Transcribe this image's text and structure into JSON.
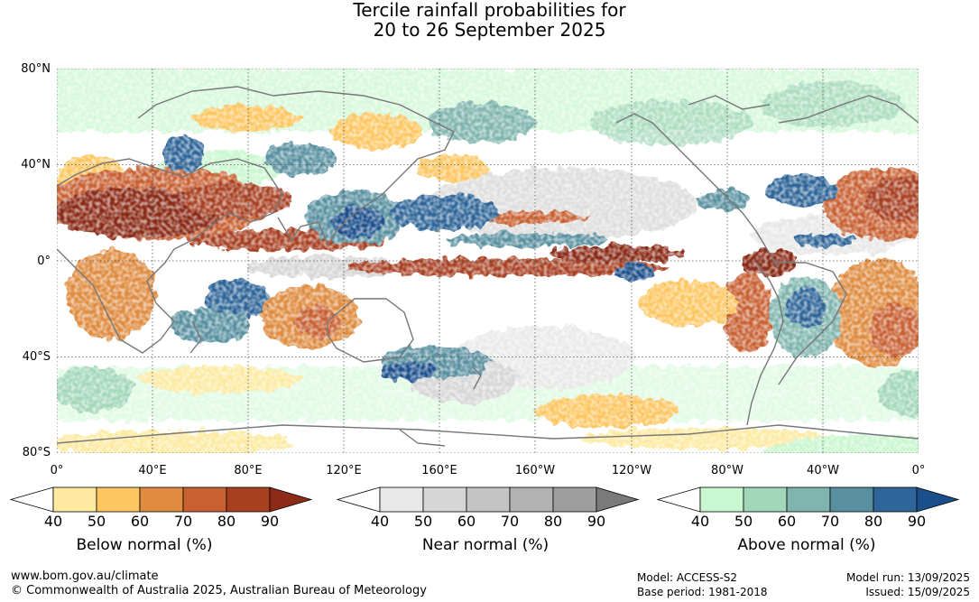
{
  "title": {
    "line1": "Tercile rainfall probabilities for",
    "line2": "20 to 26 September 2025"
  },
  "map": {
    "lat_labels": [
      "80°N",
      "40°N",
      "0°",
      "40°S",
      "80°S"
    ],
    "lon_labels": [
      "0°",
      "40°E",
      "80°E",
      "120°E",
      "160°E",
      "160°W",
      "120°W",
      "80°W",
      "40°W",
      "0°"
    ],
    "grid": true,
    "projection": "equirectangular",
    "extent": {
      "lon": [
        0,
        360
      ],
      "lat": [
        -80,
        80
      ]
    }
  },
  "legends": [
    {
      "id": "below",
      "title": "Below normal (%)",
      "ticks": [
        "40",
        "50",
        "60",
        "70",
        "80",
        "90"
      ],
      "colors": [
        "#ffffff",
        "#fdeaa0",
        "#fdc660",
        "#df8c40",
        "#c86030",
        "#a84020",
        "#8b2b18"
      ]
    },
    {
      "id": "near",
      "title": "Near normal (%)",
      "ticks": [
        "40",
        "50",
        "60",
        "70",
        "80",
        "90"
      ],
      "colors": [
        "#ffffff",
        "#e8e8e8",
        "#d6d6d6",
        "#c4c4c4",
        "#b2b2b2",
        "#9e9e9e",
        "#7a7a7a"
      ]
    },
    {
      "id": "above",
      "title": "Above normal (%)",
      "ticks": [
        "40",
        "50",
        "60",
        "70",
        "80",
        "90"
      ],
      "colors": [
        "#ffffff",
        "#c9f7cf",
        "#a2d7ba",
        "#7fb5ae",
        "#5890a0",
        "#2f6598",
        "#1a4f8c"
      ]
    }
  ],
  "footer": {
    "website": "www.bom.gov.au/climate",
    "copyright": "© Commonwealth of Australia 2025, Australian Bureau of Meteorology",
    "model": "Model: ACCESS-S2",
    "base_period": "Base period: 1981-2018",
    "model_run": "Model run: 13/09/2025",
    "issued": "Issued: 15/09/2025"
  }
}
